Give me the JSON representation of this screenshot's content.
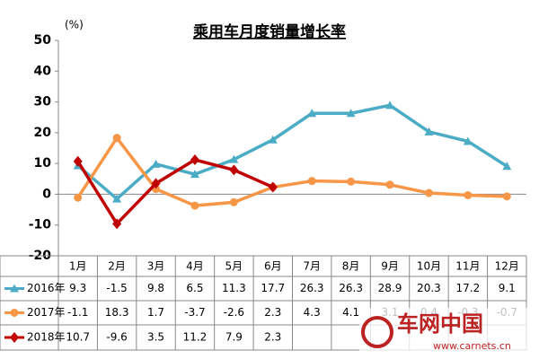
{
  "chart_data": {
    "type": "line",
    "title": "乘用车月度销量增长率",
    "y_label": "(%)",
    "categories": [
      "1月",
      "2月",
      "3月",
      "4月",
      "5月",
      "6月",
      "7月",
      "8月",
      "9月",
      "10月",
      "11月",
      "12月"
    ],
    "series": [
      {
        "name": "2016年",
        "color": "#4bacc6",
        "marker": "triangle",
        "values": [
          9.3,
          -1.5,
          9.8,
          6.5,
          11.3,
          17.7,
          26.3,
          26.3,
          28.9,
          20.3,
          17.2,
          9.1
        ]
      },
      {
        "name": "2017年",
        "color": "#f79646",
        "marker": "circle",
        "values": [
          -1.1,
          18.3,
          1.7,
          -3.7,
          -2.6,
          2.3,
          4.3,
          4.1,
          3.1,
          0.4,
          -0.3,
          -0.7
        ]
      },
      {
        "name": "2018年",
        "color": "#c00000",
        "marker": "diamond",
        "values": [
          10.7,
          -9.6,
          3.5,
          11.2,
          7.9,
          2.3,
          null,
          null,
          null,
          null,
          null,
          null
        ]
      }
    ],
    "ylim": [
      -20,
      50
    ],
    "yticks": [
      -20,
      -10,
      0,
      10,
      20,
      30,
      40,
      50
    ],
    "grid": false,
    "watermark": {
      "name": "车网中国",
      "url": "www.carnets.cn"
    }
  }
}
